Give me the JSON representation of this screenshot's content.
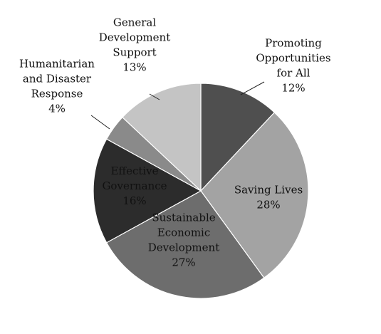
{
  "chart_data": {
    "type": "pie",
    "title": "",
    "slices": [
      {
        "label": [
          "Promoting",
          "Opportunities",
          "for All"
        ],
        "value": 12,
        "value_label": "12%",
        "color": "#4f4f4f"
      },
      {
        "label": [
          "Saving Lives"
        ],
        "value": 28,
        "value_label": "28%",
        "color": "#a3a3a3"
      },
      {
        "label": [
          "Sustainable",
          "Economic",
          "Development"
        ],
        "value": 27,
        "value_label": "27%",
        "color": "#6d6d6d"
      },
      {
        "label": [
          "Effective",
          "Governance"
        ],
        "value": 16,
        "value_label": "16%",
        "color": "#2c2c2c"
      },
      {
        "label": [
          "Humanitarian",
          "and Disaster",
          "Response"
        ],
        "value": 4,
        "value_label": "4%",
        "color": "#8a8a8a"
      },
      {
        "label": [
          "General",
          "Development",
          "Support"
        ],
        "value": 13,
        "value_label": "13%",
        "color": "#c4c4c4"
      }
    ],
    "start_angle_deg": 0,
    "direction": "clockwise",
    "legend": "none"
  }
}
